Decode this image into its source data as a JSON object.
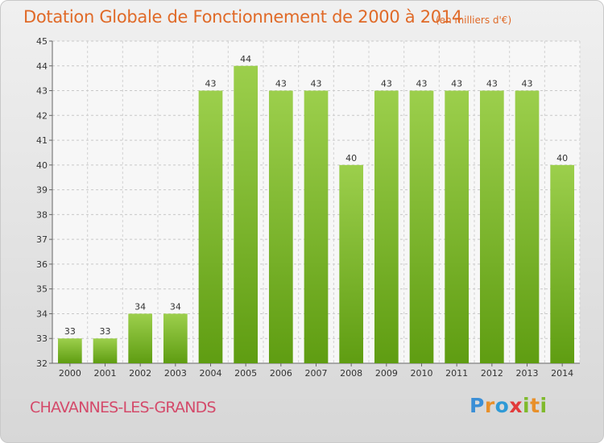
{
  "header": {
    "title": "Dotation Globale de Fonctionnement de 2000 à 2014",
    "unit": "(en milliers d'€)"
  },
  "footer": {
    "commune": "CHAVANNES-LES-GRANDS",
    "logo": "Proxiti"
  },
  "colors": {
    "bar_top": "#9ccf4c",
    "bar_bottom": "#5f9d12",
    "title": "#e06a28",
    "commune": "#d44a6a"
  },
  "chart_data": {
    "type": "bar",
    "categories": [
      "2000",
      "2001",
      "2002",
      "2003",
      "2004",
      "2005",
      "2006",
      "2007",
      "2008",
      "2009",
      "2010",
      "2011",
      "2012",
      "2013",
      "2014"
    ],
    "values": [
      33,
      33,
      34,
      34,
      43,
      44,
      43,
      43,
      40,
      43,
      43,
      43,
      43,
      43,
      40
    ],
    "title": "Dotation Globale de Fonctionnement de 2000 à 2014",
    "subtitle": "(en milliers d'€)",
    "ylim": [
      32,
      45
    ],
    "yticks": [
      32,
      33,
      34,
      35,
      36,
      37,
      38,
      39,
      40,
      41,
      42,
      43,
      44,
      45
    ],
    "grid": true,
    "data_labels": true
  }
}
